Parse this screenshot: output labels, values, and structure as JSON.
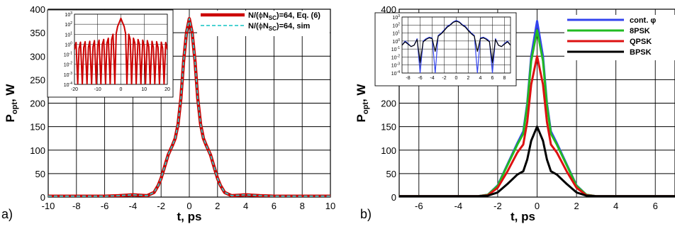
{
  "chart_data": [
    {
      "panel_label": "a)",
      "type": "line",
      "xlabel": "t, ps",
      "ylabel_main": "P",
      "ylabel_sub": "opt",
      "ylabel_tail": ", W",
      "xlim": [
        -10,
        10
      ],
      "ylim": [
        0,
        400
      ],
      "xticks": [
        -10,
        -8,
        -6,
        -4,
        -2,
        0,
        2,
        4,
        6,
        8,
        10
      ],
      "yticks": [
        0,
        50,
        100,
        150,
        200,
        250,
        300,
        350,
        400
      ],
      "grid": true,
      "legend_position": "top-right",
      "series": [
        {
          "name": "N/(ϕN_SC)=64, Eq. (6)",
          "legend_parts": [
            "N/(",
            "ϕ",
            "N",
            "SC",
            ")=64, Eq. (6)"
          ],
          "color": "#cc0000",
          "style": "solid-thick",
          "x": [
            -10,
            -8,
            -6,
            -5,
            -4,
            -3.5,
            -3,
            -2.5,
            -2.2,
            -2,
            -1.8,
            -1.5,
            -1.2,
            -1,
            -0.8,
            -0.6,
            -0.4,
            -0.2,
            0,
            0.2,
            0.4,
            0.6,
            0.8,
            1,
            1.2,
            1.5,
            1.8,
            2,
            2.2,
            2.5,
            3,
            3.5,
            4,
            4.5,
            5,
            6,
            8,
            10
          ],
          "y": [
            2,
            2,
            2,
            3,
            5,
            4,
            3,
            10,
            25,
            40,
            60,
            90,
            110,
            125,
            155,
            210,
            290,
            350,
            380,
            350,
            290,
            210,
            155,
            125,
            110,
            90,
            60,
            40,
            25,
            10,
            3,
            4,
            5,
            4,
            3,
            2,
            2,
            2
          ]
        },
        {
          "name": "N/(ϕN_SC)=64, sim",
          "legend_parts": [
            "N/(",
            "ϕ",
            "N",
            "SC",
            ")=64, sim"
          ],
          "color": "#33cccc",
          "style": "dashed",
          "x": [
            -10,
            -8,
            -6,
            -5,
            -4,
            -3.5,
            -3,
            -2.5,
            -2.2,
            -2,
            -1.8,
            -1.5,
            -1.2,
            -1,
            -0.8,
            -0.6,
            -0.4,
            -0.2,
            0,
            0.2,
            0.4,
            0.6,
            0.8,
            1,
            1.2,
            1.5,
            1.8,
            2,
            2.2,
            2.5,
            3,
            3.5,
            4,
            4.5,
            5,
            6,
            8,
            10
          ],
          "y": [
            2,
            2,
            2,
            3,
            5,
            4,
            3,
            10,
            25,
            40,
            60,
            90,
            110,
            125,
            155,
            210,
            290,
            350,
            380,
            350,
            290,
            210,
            155,
            125,
            110,
            90,
            60,
            40,
            25,
            10,
            3,
            4,
            5,
            4,
            3,
            2,
            2,
            2
          ]
        }
      ],
      "inset": {
        "scale": "log",
        "xlim": [
          -20,
          20
        ],
        "xticks": [
          -20,
          -10,
          0,
          10,
          20
        ],
        "ylim_exp": [
          -4,
          3
        ],
        "ytick_exponents": [
          3,
          2,
          1,
          0,
          -1,
          -2,
          -3,
          -4
        ],
        "ytick_base": "10",
        "series": [
          {
            "color": "#cc0000",
            "x": [
              -20,
              -19.3,
              -18.6,
              -18,
              -17.4,
              -16.6,
              -16,
              -15.4,
              -14.6,
              -14,
              -13.4,
              -12.6,
              -12,
              -11.4,
              -10.6,
              -10,
              -9.4,
              -8.6,
              -8,
              -7.4,
              -6.6,
              -6,
              -5.4,
              -4.6,
              -4,
              -3.4,
              -2.6,
              -2,
              -1.4,
              -0.7,
              0,
              0.7,
              1.4,
              2,
              2.6,
              3.4,
              4,
              4.6,
              5.4,
              6,
              6.6,
              7.4,
              8,
              8.6,
              9.4,
              10,
              10.6,
              11.4,
              12,
              12.6,
              13.4,
              14,
              14.6,
              15.4,
              16,
              16.6,
              17.4,
              18,
              18.6,
              19.3,
              20
            ],
            "y": [
              0.3,
              1.5,
              0.0001,
              0.4,
              1.6,
              0.0001,
              0.5,
              1.8,
              0.0001,
              0.5,
              2.0,
              0.0001,
              0.6,
              2.3,
              0.0001,
              0.8,
              2.6,
              0.0001,
              1.0,
              3.0,
              0.0001,
              1.3,
              4.0,
              0.0001,
              3,
              10,
              0.0001,
              12,
              60,
              150,
              380,
              150,
              60,
              12,
              0.0001,
              10,
              3,
              0.0001,
              4.0,
              1.3,
              0.0001,
              3.0,
              1.0,
              0.0001,
              2.6,
              0.8,
              0.0001,
              2.3,
              0.6,
              0.0001,
              2.0,
              0.5,
              0.0001,
              1.8,
              0.5,
              0.0001,
              1.6,
              0.4,
              0.0001,
              1.5,
              0.3
            ]
          }
        ]
      }
    },
    {
      "panel_label": "b)",
      "type": "line",
      "xlabel": "t, ps",
      "ylabel_main": "P",
      "ylabel_sub": "opt",
      "ylabel_tail": ", W",
      "xlim": [
        -7,
        7
      ],
      "ylim": [
        0,
        400
      ],
      "xticks": [
        -6,
        -4,
        -2,
        0,
        2,
        4,
        6
      ],
      "yticks": [
        0,
        50,
        100,
        150,
        200,
        250,
        300,
        350,
        400
      ],
      "grid": true,
      "legend_position": "top-right",
      "series": [
        {
          "name": "cont. φ",
          "color": "#3344ee",
          "x": [
            -7,
            -4,
            -3,
            -2.5,
            -2,
            -1.5,
            -1,
            -0.7,
            -0.5,
            -0.3,
            0,
            0.3,
            0.5,
            0.7,
            1,
            1.5,
            2,
            2.5,
            3,
            4,
            7
          ],
          "y": [
            2,
            2,
            2,
            5,
            25,
            70,
            115,
            140,
            200,
            300,
            375,
            300,
            200,
            140,
            115,
            70,
            25,
            5,
            2,
            2,
            2
          ]
        },
        {
          "name": "8PSK",
          "color": "#22bb22",
          "x": [
            -7,
            -4,
            -3,
            -2.5,
            -2,
            -1.5,
            -1,
            -0.7,
            -0.5,
            -0.3,
            0,
            0.3,
            0.5,
            0.7,
            1,
            1.5,
            2,
            2.5,
            3,
            4,
            7
          ],
          "y": [
            2,
            2,
            2,
            5,
            24,
            68,
            112,
            135,
            195,
            290,
            355,
            290,
            195,
            135,
            112,
            68,
            24,
            5,
            2,
            2,
            2
          ]
        },
        {
          "name": "QPSK",
          "color": "#dd1111",
          "x": [
            -7,
            -4,
            -3,
            -2.5,
            -2,
            -1.5,
            -1,
            -0.7,
            -0.5,
            -0.3,
            0,
            0.3,
            0.5,
            0.7,
            1,
            1.5,
            2,
            2.5,
            3,
            4,
            7
          ],
          "y": [
            2,
            2,
            2,
            4,
            20,
            55,
            95,
            112,
            160,
            240,
            300,
            240,
            160,
            112,
            95,
            55,
            20,
            4,
            2,
            2,
            2
          ]
        },
        {
          "name": "BPSK",
          "color": "#000000",
          "x": [
            -7,
            -4,
            -3,
            -2.5,
            -2,
            -1.5,
            -1,
            -0.7,
            -0.5,
            -0.3,
            0,
            0.3,
            0.5,
            0.7,
            1,
            1.5,
            2,
            2.5,
            3,
            4,
            7
          ],
          "y": [
            2,
            2,
            2,
            3,
            10,
            28,
            48,
            55,
            80,
            120,
            150,
            120,
            80,
            55,
            48,
            28,
            10,
            3,
            2,
            2,
            2
          ]
        }
      ],
      "inset": {
        "scale": "log",
        "xlim": [
          -9,
          9
        ],
        "xticks": [
          -8,
          -6,
          -4,
          -2,
          0,
          2,
          4,
          6,
          8
        ],
        "ylim_exp": [
          -4,
          3
        ],
        "ytick_exponents": [
          3,
          2,
          1,
          0,
          -1,
          -2,
          -3,
          -4
        ],
        "ytick_base": "10",
        "series": [
          {
            "color": "#3344ee",
            "x": [
              -9,
              -8.5,
              -8,
              -7.5,
              -7,
              -6.5,
              -6,
              -5.5,
              -5,
              -4.5,
              -4,
              -3.5,
              -3,
              -2.5,
              -2,
              -1.5,
              -1,
              -0.5,
              0,
              0.5,
              1,
              1.5,
              2,
              2.5,
              3,
              3.5,
              4,
              4.5,
              5,
              5.5,
              6,
              6.5,
              7,
              7.5,
              8,
              8.5,
              9
            ],
            "y": [
              0.3,
              1.0,
              0.5,
              0.2,
              0.3,
              2.0,
              0.0001,
              1.0,
              2.0,
              3.0,
              2.5,
              0.0001,
              5,
              10,
              25,
              70,
              115,
              250,
              375,
              250,
              115,
              70,
              25,
              10,
              5,
              0.0001,
              2.5,
              3.0,
              2.0,
              1.0,
              0.0001,
              2.0,
              0.3,
              0.2,
              0.5,
              1.0,
              0.3
            ]
          },
          {
            "color": "#000000",
            "x": [
              -9,
              -8.5,
              -8,
              -7.5,
              -7,
              -6.5,
              -6,
              -5.5,
              -5,
              -4.5,
              -4,
              -3.5,
              -3,
              -2.5,
              -2,
              -1.5,
              -1,
              -0.5,
              0,
              0.5,
              1,
              1.5,
              2,
              2.5,
              3,
              3.5,
              4,
              4.5,
              5,
              5.5,
              6,
              6.5,
              7,
              7.5,
              8,
              8.5,
              9
            ],
            "y": [
              0.3,
              0.8,
              0.4,
              0.2,
              0.3,
              1.5,
              0.002,
              0.8,
              1.6,
              2.5,
              2.0,
              0.05,
              4,
              8,
              20,
              55,
              95,
              220,
              300,
              220,
              95,
              55,
              20,
              8,
              4,
              0.05,
              2.0,
              2.5,
              1.6,
              0.8,
              0.002,
              1.5,
              0.3,
              0.2,
              0.4,
              0.8,
              0.3
            ]
          }
        ]
      }
    }
  ]
}
